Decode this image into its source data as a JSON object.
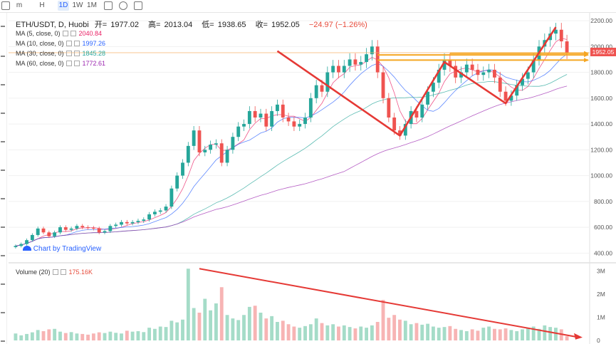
{
  "toolbar": {
    "items": [
      "m",
      "H",
      "1D",
      "1W",
      "1M"
    ],
    "active": "1D"
  },
  "header": {
    "symbol": "ETH/USDT, D, Huobi",
    "open_label": "开=",
    "open": "1977.02",
    "high_label": "高=",
    "high": "2013.04",
    "low_label": "低=",
    "low": "1938.65",
    "close_label": "收=",
    "close": "1952.05",
    "change": "−24.97 (−1.26%)"
  },
  "indicators": [
    {
      "label": "MA (5, close, 0)",
      "value": "2040.84",
      "color": "#e91e63"
    },
    {
      "label": "MA (10, close, 0)",
      "value": "1997.26",
      "color": "#2962ff"
    },
    {
      "label": "MA (30, close, 0)",
      "value": "1845.28",
      "color": "#26a69a"
    },
    {
      "label": "MA (60, close, 0)",
      "value": "1772.61",
      "color": "#9c27b0"
    }
  ],
  "volume_legend": {
    "label": "Volume (20)",
    "value": "175.16K",
    "color": "#e74c3c"
  },
  "watermark": "Chart by TradingView",
  "last_price_tag": "1952.05",
  "colors": {
    "up": "#26a69a",
    "down": "#ef5350",
    "vol_up": "#a5dcc8",
    "vol_down": "#f7b4b4",
    "annotation": "#e53935",
    "level": "#f5a623"
  },
  "chart_data": {
    "type": "candlestick",
    "price_axis": {
      "ticks": [
        "400.00",
        "600.00",
        "800.00",
        "1000.00",
        "1200.00",
        "1400.00",
        "1600.00",
        "1800.00",
        "2000.00",
        "2200.00"
      ],
      "range": [
        330,
        2250
      ]
    },
    "volume_axis": {
      "ticks": [
        "0",
        "1M",
        "2M",
        "3M"
      ],
      "range": [
        0,
        3200000
      ]
    },
    "close_series": [
      455,
      470,
      500,
      540,
      590,
      560,
      530,
      560,
      600,
      580,
      590,
      610,
      600,
      595,
      590,
      560,
      570,
      610,
      620,
      640,
      630,
      640,
      650,
      660,
      700,
      720,
      730,
      760,
      900,
      1000,
      1100,
      1230,
      1350,
      1180,
      1200,
      1240,
      1250,
      1100,
      1200,
      1300,
      1380,
      1400,
      1500,
      1450,
      1480,
      1380,
      1500,
      1550,
      1450,
      1420,
      1380,
      1400,
      1450,
      1600,
      1700,
      1650,
      1800,
      1850,
      1800,
      1850,
      1900,
      1860,
      1880,
      1940,
      2000,
      1800,
      1600,
      1450,
      1350,
      1310,
      1400,
      1500,
      1450,
      1550,
      1650,
      1720,
      1820,
      1900,
      1850,
      1760,
      1800,
      1860,
      1820,
      1780,
      1800,
      1820,
      1760,
      1650,
      1580,
      1620,
      1700,
      1750,
      1800,
      1900,
      2000,
      2050,
      2100,
      2130,
      2040,
      1952
    ],
    "volume_series": [
      0.3,
      0.22,
      0.28,
      0.35,
      0.45,
      0.4,
      0.48,
      0.5,
      0.38,
      0.32,
      0.36,
      0.3,
      0.28,
      0.25,
      0.3,
      0.35,
      0.32,
      0.38,
      0.33,
      0.3,
      0.42,
      0.38,
      0.4,
      0.36,
      0.55,
      0.5,
      0.6,
      0.58,
      0.85,
      0.78,
      0.9,
      3.1,
      1.4,
      1.2,
      1.8,
      1.3,
      1.6,
      2.3,
      1.1,
      0.95,
      0.88,
      1.1,
      1.45,
      1.5,
      1.2,
      0.95,
      1.05,
      0.8,
      0.85,
      0.7,
      0.6,
      0.55,
      0.62,
      0.7,
      0.95,
      0.75,
      0.65,
      0.7,
      0.6,
      0.65,
      0.58,
      0.52,
      0.6,
      0.55,
      0.65,
      0.8,
      1.75,
      0.98,
      1.1,
      0.9,
      0.85,
      0.7,
      0.75,
      0.68,
      0.72,
      0.6,
      0.55,
      0.58,
      0.62,
      0.5,
      0.45,
      0.4,
      0.48,
      0.42,
      0.55,
      0.6,
      0.5,
      0.48,
      0.52,
      0.45,
      0.4,
      0.48,
      0.55,
      0.6,
      0.5,
      0.65,
      0.58,
      0.55,
      0.48,
      0.18
    ],
    "annotations": {
      "zigzag": [
        [
          47,
          1965
        ],
        [
          69,
          1310
        ],
        [
          77,
          1880
        ],
        [
          88,
          1560
        ],
        [
          97,
          2150
        ]
      ],
      "resistance_lines": [
        [
          1895,
          65
        ],
        [
          1935,
          65
        ],
        [
          1948,
          78
        ]
      ],
      "volume_trend": [
        [
          33,
          3100000
        ],
        [
          120,
          130000
        ]
      ]
    }
  }
}
